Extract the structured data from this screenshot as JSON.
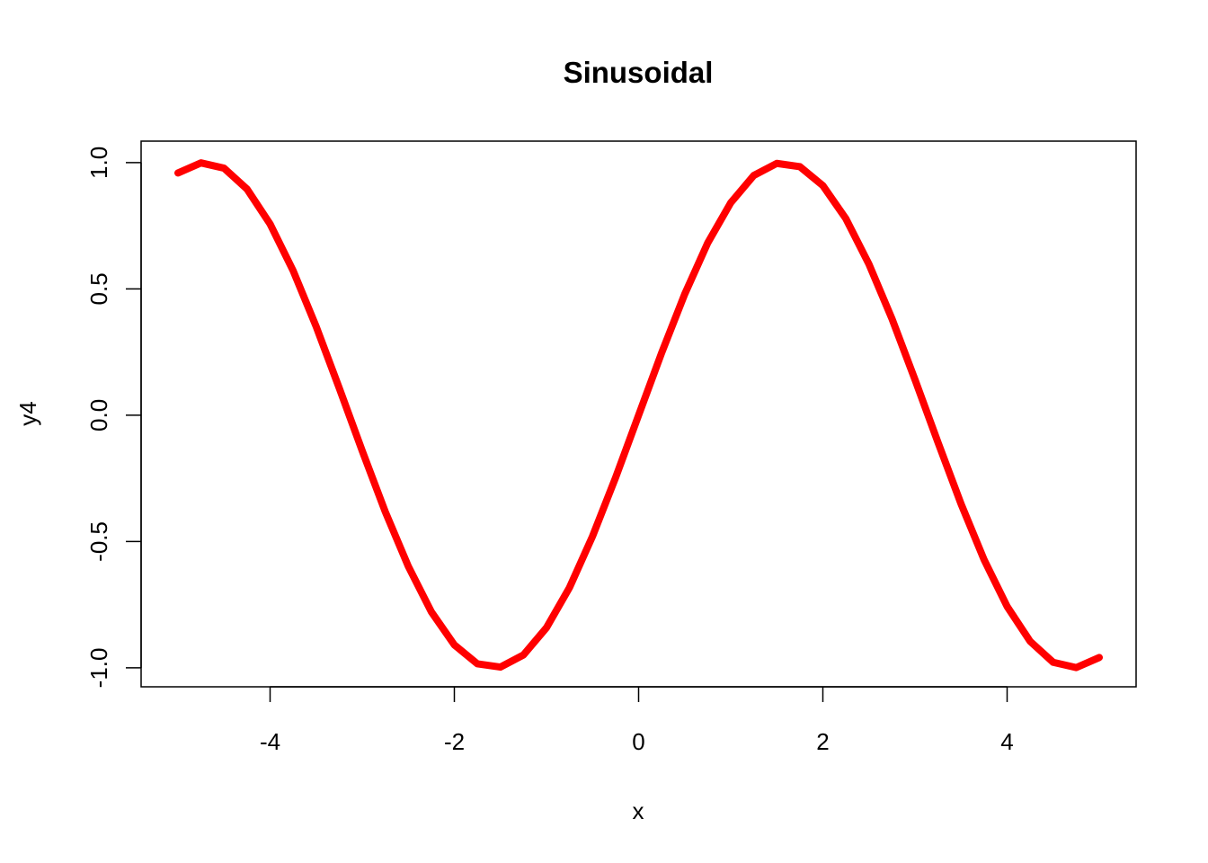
{
  "chart_data": {
    "type": "line",
    "title": "Sinusoidal",
    "xlabel": "x",
    "ylabel": "y4",
    "xlim": [
      -5.4,
      5.4
    ],
    "ylim": [
      -1.075,
      1.085
    ],
    "x_ticks": [
      -4,
      -2,
      0,
      2,
      4
    ],
    "x_tick_labels": [
      "-4",
      "-2",
      "0",
      "2",
      "4"
    ],
    "y_ticks": [
      -1.0,
      -0.5,
      0.0,
      0.5,
      1.0
    ],
    "y_tick_labels": [
      "-1.0",
      "-0.5",
      "0.0",
      "0.5",
      "1.0"
    ],
    "grid": false,
    "legend": "none",
    "series": [
      {
        "color": "#ff0000",
        "x": [
          -5.0,
          -4.75,
          -4.5,
          -4.25,
          -4.0,
          -3.75,
          -3.5,
          -3.25,
          -3.0,
          -2.75,
          -2.5,
          -2.25,
          -2.0,
          -1.75,
          -1.5,
          -1.25,
          -1.0,
          -0.75,
          -0.5,
          -0.25,
          0.0,
          0.25,
          0.5,
          0.75,
          1.0,
          1.25,
          1.5,
          1.75,
          2.0,
          2.25,
          2.5,
          2.75,
          3.0,
          3.25,
          3.5,
          3.75,
          4.0,
          4.25,
          4.5,
          4.75,
          5.0
        ],
        "y": [
          0.959,
          0.999,
          0.978,
          0.895,
          0.757,
          0.572,
          0.351,
          0.108,
          -0.141,
          -0.382,
          -0.598,
          -0.778,
          -0.909,
          -0.984,
          -0.997,
          -0.949,
          -0.841,
          -0.682,
          -0.479,
          -0.247,
          0.0,
          0.247,
          0.479,
          0.682,
          0.841,
          0.949,
          0.997,
          0.984,
          0.909,
          0.778,
          0.598,
          0.382,
          0.141,
          -0.108,
          -0.351,
          -0.572,
          -0.757,
          -0.895,
          -0.978,
          -0.999,
          -0.959
        ]
      }
    ]
  }
}
